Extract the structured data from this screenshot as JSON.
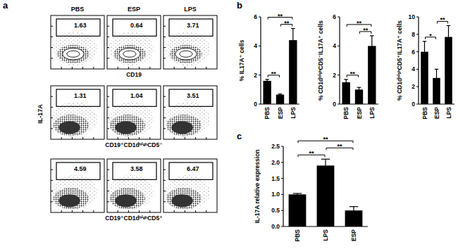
{
  "panel_labels": [
    "a",
    "b",
    "c"
  ],
  "flow_cytometry": {
    "columns": [
      "PBS",
      "ESP",
      "LPS"
    ],
    "y_label": "IL-17A",
    "rows": [
      {
        "x_label": "CD19",
        "gate_percent": [
          1.63,
          0.64,
          3.71
        ]
      },
      {
        "x_label": "CD19⁺CD1dʰⁱᵍʰCD5⁻",
        "gate_percent": [
          1.31,
          1.04,
          3.51
        ]
      },
      {
        "x_label": "CD19⁺CD1dʰⁱᵍʰCD5⁺",
        "gate_percent": [
          4.59,
          3.58,
          6.47
        ]
      }
    ]
  },
  "chart_data": [
    {
      "type": "bar",
      "y_label": "% IL17A⁺ cells",
      "categories": [
        "PBS",
        "ESP",
        "LPS"
      ],
      "values": [
        1.6,
        0.65,
        4.4
      ],
      "errors": [
        0.1,
        0.05,
        0.8
      ],
      "color": "#000000",
      "ylim": [
        0,
        6
      ],
      "yticks": [
        0,
        2,
        4,
        6
      ],
      "significance": [
        {
          "from": 0,
          "to": 1,
          "label": "**"
        },
        {
          "from": 0,
          "to": 2,
          "label": "**"
        },
        {
          "from": 1,
          "to": 2,
          "label": "**"
        }
      ]
    },
    {
      "type": "bar",
      "y_label": "% CD1dʰⁱᵍʰCD5⁻IL17A⁺ cells",
      "categories": [
        "PBS",
        "ESP",
        "LPS"
      ],
      "values": [
        1.5,
        1.0,
        4.0
      ],
      "errors": [
        0.2,
        0.15,
        0.7
      ],
      "color": "#000000",
      "ylim": [
        0,
        6
      ],
      "yticks": [
        0,
        2,
        4,
        6
      ],
      "significance": [
        {
          "from": 0,
          "to": 1,
          "label": "**"
        },
        {
          "from": 0,
          "to": 2,
          "label": "**"
        },
        {
          "from": 1,
          "to": 2,
          "label": "**"
        }
      ]
    },
    {
      "type": "bar",
      "y_label": "% CD1dʰⁱᵍʰCD5⁺IL17A⁺ cells",
      "categories": [
        "PBS",
        "ESP",
        "LPS"
      ],
      "values": [
        6.0,
        3.0,
        7.7
      ],
      "errors": [
        1.2,
        1.0,
        1.3
      ],
      "color": "#000000",
      "ylim": [
        0,
        10
      ],
      "yticks": [
        0,
        2,
        4,
        6,
        8,
        10
      ],
      "significance": [
        {
          "from": 0,
          "to": 1,
          "label": "*"
        },
        {
          "from": 1,
          "to": 2,
          "label": "**"
        }
      ]
    },
    {
      "type": "bar",
      "y_label": "IL-17A relative expression",
      "categories": [
        "PBS",
        "LPS",
        "ESP"
      ],
      "values": [
        1.0,
        1.9,
        0.5
      ],
      "errors": [
        0.03,
        0.2,
        0.12
      ],
      "color": "#000000",
      "ylim": [
        0,
        2.5
      ],
      "yticks": [
        {
          "value": 0,
          "label": "0.0"
        },
        {
          "value": 0.5,
          "label": "0.5"
        },
        {
          "value": 1,
          "label": "1.0"
        },
        {
          "value": 1.5,
          "label": "1.5"
        },
        {
          "value": 2,
          "label": "2.0"
        },
        {
          "value": 2.5,
          "label": "2.5"
        }
      ],
      "significance": [
        {
          "from": 0,
          "to": 1,
          "label": "**"
        },
        {
          "from": 1,
          "to": 2,
          "label": "**"
        },
        {
          "from": 0,
          "to": 2,
          "label": "**"
        }
      ]
    }
  ]
}
